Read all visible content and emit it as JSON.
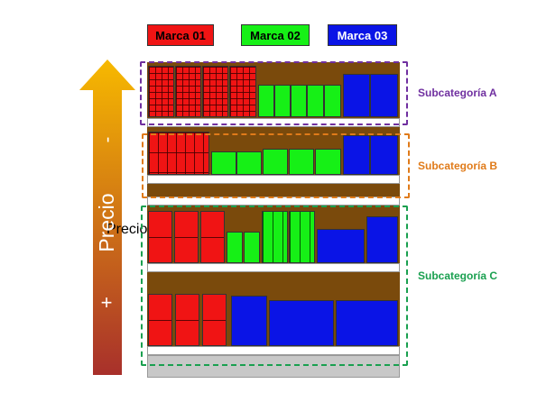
{
  "legend": [
    {
      "label": "Marca 01",
      "color": "#f01414"
    },
    {
      "label": "Marca 02",
      "color": "#16f016"
    },
    {
      "label": "Marca 03",
      "color": "#0a14e6"
    }
  ],
  "arrow": {
    "label": "Precio",
    "top_sign": "-",
    "bottom_sign": "+",
    "gradient_top": "#f7b900",
    "gradient_bottom": "#a8302b"
  },
  "subcategories": [
    {
      "label": "Subcategoría A",
      "color": "#7030a0"
    },
    {
      "label": "Subcategoría B",
      "color": "#e07b1a"
    },
    {
      "label": "Subcategoría C",
      "color": "#1aa050"
    }
  ]
}
